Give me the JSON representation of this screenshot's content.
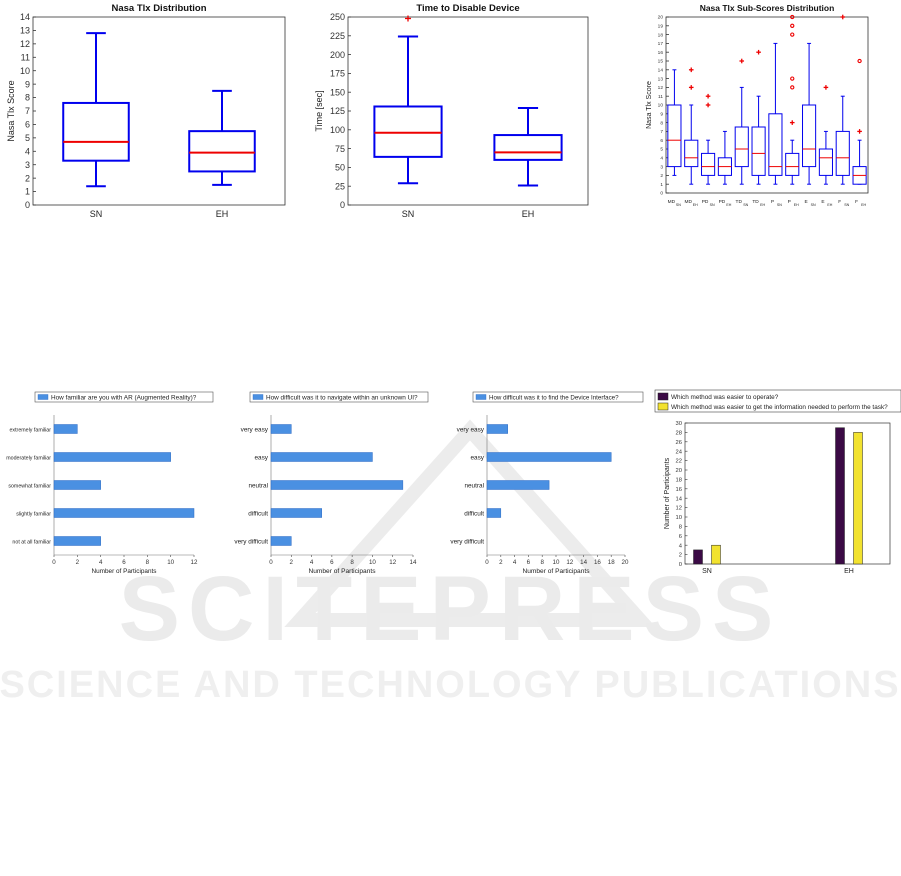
{
  "watermark": {
    "line1": "SCITEPRESS",
    "line2": "SCIENCE AND TECHNOLOGY PUBLICATIONS"
  },
  "chart_data": [
    {
      "id": "tlx",
      "type": "box",
      "title": "Nasa Tlx Distribution",
      "ylabel": "Nasa Tlx Score",
      "ylim": [
        0,
        14
      ],
      "yticks": [
        0,
        1,
        2,
        3,
        4,
        5,
        6,
        7,
        8,
        9,
        10,
        11,
        12,
        13,
        14
      ],
      "categories": [
        "SN",
        "EH"
      ],
      "boxes": [
        {
          "label": "SN",
          "min": 1.4,
          "q1": 3.3,
          "median": 4.7,
          "q3": 7.6,
          "max": 12.8,
          "outliers": []
        },
        {
          "label": "EH",
          "min": 1.5,
          "q1": 2.5,
          "median": 3.9,
          "q3": 5.5,
          "max": 8.5,
          "outliers": []
        }
      ],
      "colors": {
        "box": "#0000ee",
        "median": "#ee0000",
        "outlier": "#ee0000"
      }
    },
    {
      "id": "time",
      "type": "box",
      "title": "Time to Disable Device",
      "ylabel": "Time [sec]",
      "ylim": [
        0,
        250
      ],
      "yticks": [
        0,
        25,
        50,
        75,
        100,
        125,
        150,
        175,
        200,
        225,
        250
      ],
      "categories": [
        "SN",
        "EH"
      ],
      "boxes": [
        {
          "label": "SN",
          "min": 29,
          "q1": 64,
          "median": 96,
          "q3": 131,
          "max": 224,
          "outliers": [
            248
          ]
        },
        {
          "label": "EH",
          "min": 26,
          "q1": 60,
          "median": 70,
          "q3": 93,
          "max": 129,
          "outliers": []
        }
      ],
      "colors": {
        "box": "#0000ee",
        "median": "#ee0000",
        "outlier": "#ee0000"
      }
    },
    {
      "id": "sub",
      "type": "box",
      "title": "Nasa Tlx Sub-Scores Distribution",
      "ylabel": "Nasa Tlx Score",
      "ylim": [
        0,
        20
      ],
      "yticks": [
        0,
        1,
        2,
        3,
        4,
        5,
        6,
        7,
        8,
        9,
        10,
        11,
        12,
        13,
        14,
        15,
        16,
        17,
        18,
        19,
        20
      ],
      "categories": [
        {
          "main": "MD",
          "sub": "SN"
        },
        {
          "main": "MD",
          "sub": "EH"
        },
        {
          "main": "PD",
          "sub": "SN"
        },
        {
          "main": "PD",
          "sub": "EH"
        },
        {
          "main": "TD",
          "sub": "SN"
        },
        {
          "main": "TD",
          "sub": "EH"
        },
        {
          "main": "P",
          "sub": "SN"
        },
        {
          "main": "P",
          "sub": "EH"
        },
        {
          "main": "E",
          "sub": "SN"
        },
        {
          "main": "E",
          "sub": "EH"
        },
        {
          "main": "F",
          "sub": "SN"
        },
        {
          "main": "F",
          "sub": "EH"
        }
      ],
      "boxes": [
        {
          "min": 2,
          "q1": 3,
          "median": 6,
          "q3": 10,
          "max": 14,
          "outliers": []
        },
        {
          "min": 1,
          "q1": 3,
          "median": 4,
          "q3": 6,
          "max": 10,
          "outliers": [
            12,
            14
          ]
        },
        {
          "min": 1,
          "q1": 2,
          "median": 3,
          "q3": 4.5,
          "max": 6,
          "outliers": [
            10,
            11
          ]
        },
        {
          "min": 1,
          "q1": 2,
          "median": 3,
          "q3": 4,
          "max": 7,
          "outliers": []
        },
        {
          "min": 1,
          "q1": 3,
          "median": 5,
          "q3": 7.5,
          "max": 12,
          "outliers": [
            15
          ]
        },
        {
          "min": 1,
          "q1": 2,
          "median": 4.5,
          "q3": 7.5,
          "max": 11,
          "outliers": [
            16
          ]
        },
        {
          "min": 1,
          "q1": 2,
          "median": 3,
          "q3": 9,
          "max": 17,
          "outliers": []
        },
        {
          "min": 1,
          "q1": 2,
          "median": 3,
          "q3": 4.5,
          "max": 6,
          "outliers": [
            8,
            12,
            13,
            18,
            19,
            20
          ]
        },
        {
          "min": 1,
          "q1": 3,
          "median": 5,
          "q3": 10,
          "max": 17,
          "outliers": []
        },
        {
          "min": 1,
          "q1": 2,
          "median": 4,
          "q3": 5,
          "max": 7,
          "outliers": [
            12
          ]
        },
        {
          "min": 1,
          "q1": 2,
          "median": 4,
          "q3": 7,
          "max": 11,
          "outliers": [
            20
          ]
        },
        {
          "min": 1,
          "q1": 1,
          "median": 2,
          "q3": 3,
          "max": 6,
          "outliers": [
            7,
            15
          ]
        }
      ],
      "outlier_marks": [
        [],
        [
          "+",
          "+"
        ],
        [
          "+",
          "+"
        ],
        [],
        [
          "+"
        ],
        [
          "+"
        ],
        [],
        [
          "+",
          "o",
          "o",
          "o",
          "o",
          "o"
        ],
        [],
        [
          "+"
        ],
        [
          "+"
        ],
        [
          "+",
          "o"
        ]
      ],
      "colors": {
        "box": "#0000ee",
        "median": "#ee0000",
        "outlier": "#ee0000"
      }
    },
    {
      "id": "ar",
      "type": "hbar",
      "legend": "How familiar are you with AR (Augmented Reality)?",
      "xlabel": "Number of Participants",
      "xlim": [
        0,
        12
      ],
      "xticks": [
        0,
        2,
        4,
        6,
        8,
        10,
        12
      ],
      "categories": [
        "extremely familiar",
        "moderately familiar",
        "somewhat familiar",
        "slightly familiar",
        "not at all familiar"
      ],
      "values": [
        2,
        10,
        4,
        12,
        4
      ],
      "colors": {
        "bar": "#4a90e2",
        "bar_edge": "#2d6bc4"
      }
    },
    {
      "id": "nav",
      "type": "hbar",
      "legend": "How difficult was it to navigate within an unknown UI?",
      "xlabel": "Number of Participants",
      "xlim": [
        0,
        14
      ],
      "xticks": [
        0,
        2,
        4,
        6,
        8,
        10,
        12,
        14
      ],
      "categories": [
        "very easy",
        "easy",
        "neutral",
        "difficult",
        "very difficult"
      ],
      "values": [
        2,
        10,
        13,
        5,
        2
      ],
      "colors": {
        "bar": "#4a90e2",
        "bar_edge": "#2d6bc4"
      }
    },
    {
      "id": "find",
      "type": "hbar",
      "legend": "How difficult was it to find the Device Interface?",
      "xlabel": "Number of Participants",
      "xlim": [
        0,
        20
      ],
      "xticks": [
        0,
        2,
        4,
        6,
        8,
        10,
        12,
        14,
        16,
        18,
        20
      ],
      "categories": [
        "very easy",
        "easy",
        "neutral",
        "difficult",
        "very difficult"
      ],
      "values": [
        3,
        18,
        9,
        2,
        0
      ],
      "colors": {
        "bar": "#4a90e2",
        "bar_edge": "#2d6bc4"
      }
    },
    {
      "id": "method",
      "type": "bar",
      "ylabel": "Number of Participants",
      "ylim": [
        0,
        30
      ],
      "yticks": [
        0,
        2,
        4,
        6,
        8,
        10,
        12,
        14,
        16,
        18,
        20,
        22,
        24,
        26,
        28,
        30
      ],
      "categories": [
        "SN",
        "EH"
      ],
      "series": [
        {
          "name": "Which method was easier to operate?",
          "values": [
            3,
            29
          ],
          "color": "#3b0a45"
        },
        {
          "name": "Which method was easier to get the information needed to perform the task?",
          "values": [
            4,
            28
          ],
          "color": "#f2e22f"
        }
      ]
    }
  ]
}
